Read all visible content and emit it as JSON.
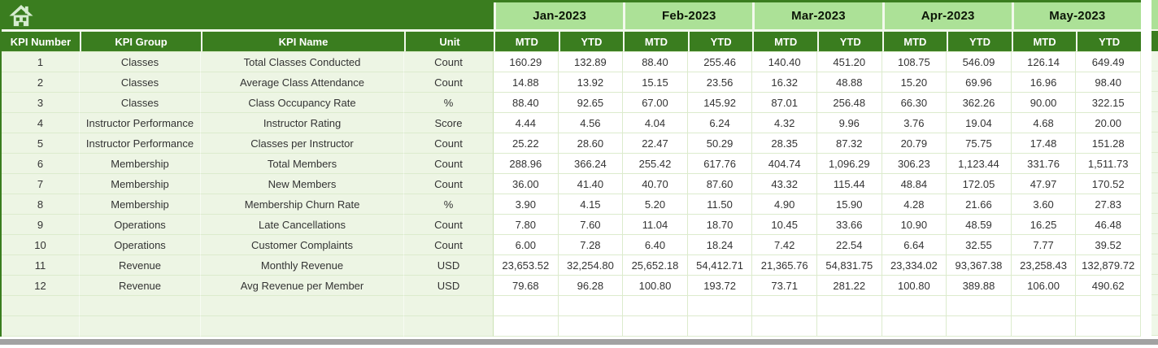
{
  "icons": {
    "home": "home-icon"
  },
  "table": {
    "fixed_headers": [
      "KPI Number",
      "KPI Group",
      "KPI Name",
      "Unit"
    ],
    "months": [
      "Jan-2023",
      "Feb-2023",
      "Mar-2023",
      "Apr-2023",
      "May-2023"
    ],
    "period_headers": [
      "MTD",
      "YTD"
    ],
    "rows": [
      {
        "number": "1",
        "group": "Classes",
        "name": "Total Classes Conducted",
        "unit": "Count",
        "values": [
          "160.29",
          "132.89",
          "88.40",
          "255.46",
          "140.40",
          "451.20",
          "108.75",
          "546.09",
          "126.14",
          "649.49"
        ]
      },
      {
        "number": "2",
        "group": "Classes",
        "name": "Average Class Attendance",
        "unit": "Count",
        "values": [
          "14.88",
          "13.92",
          "15.15",
          "23.56",
          "16.32",
          "48.88",
          "15.20",
          "69.96",
          "16.96",
          "98.40"
        ]
      },
      {
        "number": "3",
        "group": "Classes",
        "name": "Class Occupancy Rate",
        "unit": "%",
        "values": [
          "88.40",
          "92.65",
          "67.00",
          "145.92",
          "87.01",
          "256.48",
          "66.30",
          "362.26",
          "90.00",
          "322.15"
        ]
      },
      {
        "number": "4",
        "group": "Instructor Performance",
        "name": "Instructor Rating",
        "unit": "Score",
        "values": [
          "4.44",
          "4.56",
          "4.04",
          "6.24",
          "4.32",
          "9.96",
          "3.76",
          "19.04",
          "4.68",
          "20.00"
        ]
      },
      {
        "number": "5",
        "group": "Instructor Performance",
        "name": "Classes per Instructor",
        "unit": "Count",
        "values": [
          "25.22",
          "28.60",
          "22.47",
          "50.29",
          "28.35",
          "87.32",
          "20.79",
          "75.75",
          "17.48",
          "151.28"
        ]
      },
      {
        "number": "6",
        "group": "Membership",
        "name": "Total Members",
        "unit": "Count",
        "values": [
          "288.96",
          "366.24",
          "255.42",
          "617.76",
          "404.74",
          "1,096.29",
          "306.23",
          "1,123.44",
          "331.76",
          "1,511.73"
        ]
      },
      {
        "number": "7",
        "group": "Membership",
        "name": "New Members",
        "unit": "Count",
        "values": [
          "36.00",
          "41.40",
          "40.70",
          "87.60",
          "43.32",
          "115.44",
          "48.84",
          "172.05",
          "47.97",
          "170.52"
        ]
      },
      {
        "number": "8",
        "group": "Membership",
        "name": "Membership Churn Rate",
        "unit": "%",
        "values": [
          "3.90",
          "4.15",
          "5.20",
          "11.50",
          "4.90",
          "15.90",
          "4.28",
          "21.66",
          "3.60",
          "27.83"
        ]
      },
      {
        "number": "9",
        "group": "Operations",
        "name": "Late Cancellations",
        "unit": "Count",
        "values": [
          "7.80",
          "7.60",
          "11.04",
          "18.70",
          "10.45",
          "33.66",
          "10.90",
          "48.59",
          "16.25",
          "46.48"
        ]
      },
      {
        "number": "10",
        "group": "Operations",
        "name": "Customer Complaints",
        "unit": "Count",
        "values": [
          "6.00",
          "7.28",
          "6.40",
          "18.24",
          "7.42",
          "22.54",
          "6.64",
          "32.55",
          "7.77",
          "39.52"
        ]
      },
      {
        "number": "11",
        "group": "Revenue",
        "name": "Monthly Revenue",
        "unit": "USD",
        "values": [
          "23,653.52",
          "32,254.80",
          "25,652.18",
          "54,412.71",
          "21,365.76",
          "54,831.75",
          "23,334.02",
          "93,367.38",
          "23,258.43",
          "132,879.72"
        ]
      },
      {
        "number": "12",
        "group": "Revenue",
        "name": "Avg Revenue per Member",
        "unit": "USD",
        "values": [
          "79.68",
          "96.28",
          "100.80",
          "193.72",
          "73.71",
          "281.22",
          "100.80",
          "389.88",
          "106.00",
          "490.62"
        ]
      }
    ],
    "empty_row_count": 2
  },
  "colors": {
    "dark_green": "#3a7d1f",
    "light_green": "#ace197",
    "row_tint": "#edf5e4",
    "grid_line": "#dcebcd",
    "scrollbar_gray": "#a2a2a2"
  }
}
